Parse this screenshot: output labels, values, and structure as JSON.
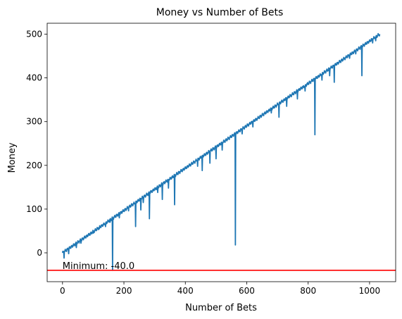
{
  "chart_data": {
    "type": "line",
    "title": "Money vs Number of Bets",
    "xlabel": "Number of Bets",
    "ylabel": "Money",
    "xlim": [
      -50,
      1085
    ],
    "ylim": [
      -66,
      525
    ],
    "x_ticks": [
      0,
      200,
      400,
      600,
      800,
      1000
    ],
    "y_ticks": [
      0,
      100,
      200,
      300,
      400,
      500
    ],
    "grid": false,
    "series": [
      {
        "color": "#1f77b4",
        "start": [
          0,
          0
        ],
        "end": [
          1033,
          500
        ],
        "trend_step": 0.484,
        "dips": [
          {
            "x": 5,
            "y": -12
          },
          {
            "x": 20,
            "y": -2
          },
          {
            "x": 45,
            "y": 12
          },
          {
            "x": 60,
            "y": 22
          },
          {
            "x": 100,
            "y": 45
          },
          {
            "x": 120,
            "y": 55
          },
          {
            "x": 140,
            "y": 60
          },
          {
            "x": 155,
            "y": 70
          },
          {
            "x": 163,
            "y": -40
          },
          {
            "x": 185,
            "y": 80
          },
          {
            "x": 215,
            "y": 96
          },
          {
            "x": 238,
            "y": 60
          },
          {
            "x": 255,
            "y": 98
          },
          {
            "x": 263,
            "y": 115
          },
          {
            "x": 283,
            "y": 78
          },
          {
            "x": 310,
            "y": 138
          },
          {
            "x": 325,
            "y": 122
          },
          {
            "x": 345,
            "y": 148
          },
          {
            "x": 365,
            "y": 110
          },
          {
            "x": 440,
            "y": 198
          },
          {
            "x": 455,
            "y": 188
          },
          {
            "x": 480,
            "y": 205
          },
          {
            "x": 500,
            "y": 215
          },
          {
            "x": 520,
            "y": 235
          },
          {
            "x": 563,
            "y": 18
          },
          {
            "x": 585,
            "y": 272
          },
          {
            "x": 620,
            "y": 288
          },
          {
            "x": 680,
            "y": 320
          },
          {
            "x": 705,
            "y": 310
          },
          {
            "x": 730,
            "y": 335
          },
          {
            "x": 765,
            "y": 352
          },
          {
            "x": 790,
            "y": 370
          },
          {
            "x": 822,
            "y": 270
          },
          {
            "x": 845,
            "y": 395
          },
          {
            "x": 870,
            "y": 405
          },
          {
            "x": 885,
            "y": 390
          },
          {
            "x": 935,
            "y": 445
          },
          {
            "x": 955,
            "y": 455
          },
          {
            "x": 975,
            "y": 405
          },
          {
            "x": 1010,
            "y": 480
          },
          {
            "x": 1020,
            "y": 485
          }
        ]
      }
    ],
    "hline": {
      "y": -40,
      "color": "#ff0000"
    },
    "annotation": {
      "text": "Minimum: -40.0",
      "x": 0,
      "y": -40
    }
  }
}
